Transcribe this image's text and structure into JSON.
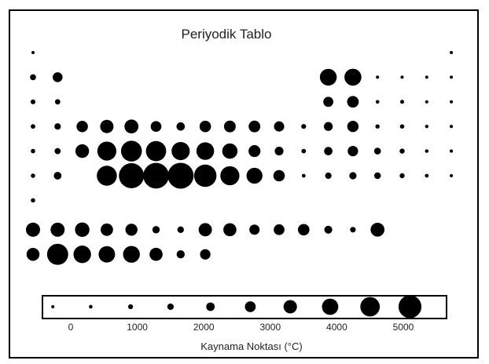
{
  "chart_data": {
    "type": "scatter",
    "title": "Periyodik Tablo",
    "xlabel": "Kaynama Noktası (°C)",
    "size_legend": {
      "ticks": [
        0,
        1000,
        2000,
        3000,
        4000,
        5000
      ],
      "values": [
        -269,
        300,
        900,
        1500,
        2100,
        2700,
        3300,
        3900,
        4500,
        5100
      ]
    },
    "size_scale": {
      "min": -269,
      "max": 5600
    },
    "colors": {
      "marker": "#000000",
      "frame": "#000000"
    },
    "elements": [
      {
        "period": 1,
        "group": 1,
        "bp": -253
      },
      {
        "period": 1,
        "group": 18,
        "bp": -269
      },
      {
        "period": 2,
        "group": 1,
        "bp": 1342
      },
      {
        "period": 2,
        "group": 2,
        "bp": 2470
      },
      {
        "period": 2,
        "group": 13,
        "bp": 4000
      },
      {
        "period": 2,
        "group": 14,
        "bp": 4027
      },
      {
        "period": 2,
        "group": 15,
        "bp": -196
      },
      {
        "period": 2,
        "group": 16,
        "bp": -183
      },
      {
        "period": 2,
        "group": 17,
        "bp": -188
      },
      {
        "period": 2,
        "group": 18,
        "bp": -246
      },
      {
        "period": 3,
        "group": 1,
        "bp": 883
      },
      {
        "period": 3,
        "group": 2,
        "bp": 1090
      },
      {
        "period": 3,
        "group": 13,
        "bp": 2519
      },
      {
        "period": 3,
        "group": 14,
        "bp": 2900
      },
      {
        "period": 3,
        "group": 15,
        "bp": 280
      },
      {
        "period": 3,
        "group": 16,
        "bp": 445
      },
      {
        "period": 3,
        "group": 17,
        "bp": -34
      },
      {
        "period": 3,
        "group": 18,
        "bp": -186
      },
      {
        "period": 4,
        "group": 1,
        "bp": 759
      },
      {
        "period": 4,
        "group": 2,
        "bp": 1484
      },
      {
        "period": 4,
        "group": 3,
        "bp": 2836
      },
      {
        "period": 4,
        "group": 4,
        "bp": 3287
      },
      {
        "period": 4,
        "group": 5,
        "bp": 3407
      },
      {
        "period": 4,
        "group": 6,
        "bp": 2671
      },
      {
        "period": 4,
        "group": 7,
        "bp": 2061
      },
      {
        "period": 4,
        "group": 8,
        "bp": 2861
      },
      {
        "period": 4,
        "group": 9,
        "bp": 2927
      },
      {
        "period": 4,
        "group": 10,
        "bp": 2913
      },
      {
        "period": 4,
        "group": 11,
        "bp": 2562
      },
      {
        "period": 4,
        "group": 12,
        "bp": 907
      },
      {
        "period": 4,
        "group": 13,
        "bp": 2204
      },
      {
        "period": 4,
        "group": 14,
        "bp": 2833
      },
      {
        "period": 4,
        "group": 15,
        "bp": 614
      },
      {
        "period": 4,
        "group": 16,
        "bp": 685
      },
      {
        "period": 4,
        "group": 17,
        "bp": 59
      },
      {
        "period": 4,
        "group": 18,
        "bp": -153
      },
      {
        "period": 5,
        "group": 1,
        "bp": 688
      },
      {
        "period": 5,
        "group": 2,
        "bp": 1382
      },
      {
        "period": 5,
        "group": 3,
        "bp": 3345
      },
      {
        "period": 5,
        "group": 4,
        "bp": 4409
      },
      {
        "period": 5,
        "group": 5,
        "bp": 4744
      },
      {
        "period": 5,
        "group": 6,
        "bp": 4639
      },
      {
        "period": 5,
        "group": 7,
        "bp": 4265
      },
      {
        "period": 5,
        "group": 8,
        "bp": 4150
      },
      {
        "period": 5,
        "group": 9,
        "bp": 3695
      },
      {
        "period": 5,
        "group": 10,
        "bp": 2963
      },
      {
        "period": 5,
        "group": 11,
        "bp": 2162
      },
      {
        "period": 5,
        "group": 12,
        "bp": 767
      },
      {
        "period": 5,
        "group": 13,
        "bp": 2072
      },
      {
        "period": 5,
        "group": 14,
        "bp": 2602
      },
      {
        "period": 5,
        "group": 15,
        "bp": 1587
      },
      {
        "period": 5,
        "group": 16,
        "bp": 988
      },
      {
        "period": 5,
        "group": 17,
        "bp": 184
      },
      {
        "period": 5,
        "group": 18,
        "bp": -108
      },
      {
        "period": 6,
        "group": 1,
        "bp": 671
      },
      {
        "period": 6,
        "group": 2,
        "bp": 1870
      },
      {
        "period": 6,
        "group": 4,
        "bp": 4603
      },
      {
        "period": 6,
        "group": 5,
        "bp": 5458
      },
      {
        "period": 6,
        "group": 6,
        "bp": 5555
      },
      {
        "period": 6,
        "group": 7,
        "bp": 5596
      },
      {
        "period": 6,
        "group": 8,
        "bp": 5012
      },
      {
        "period": 6,
        "group": 9,
        "bp": 4428
      },
      {
        "period": 6,
        "group": 10,
        "bp": 3825
      },
      {
        "period": 6,
        "group": 11,
        "bp": 2856
      },
      {
        "period": 6,
        "group": 12,
        "bp": 357
      },
      {
        "period": 6,
        "group": 13,
        "bp": 1473
      },
      {
        "period": 6,
        "group": 14,
        "bp": 1749
      },
      {
        "period": 6,
        "group": 15,
        "bp": 1564
      },
      {
        "period": 6,
        "group": 16,
        "bp": 962
      },
      {
        "period": 6,
        "group": 17,
        "bp": 350
      },
      {
        "period": 6,
        "group": 18,
        "bp": -62
      },
      {
        "period": 7,
        "group": 1,
        "bp": 677
      },
      {
        "period": 8,
        "group": 1,
        "bp": 3464
      },
      {
        "period": 8,
        "group": 2,
        "bp": 3443
      },
      {
        "period": 8,
        "group": 3,
        "bp": 3520
      },
      {
        "period": 8,
        "group": 4,
        "bp": 3074
      },
      {
        "period": 8,
        "group": 5,
        "bp": 3000
      },
      {
        "period": 8,
        "group": 6,
        "bp": 1794
      },
      {
        "period": 8,
        "group": 7,
        "bp": 1529
      },
      {
        "period": 8,
        "group": 8,
        "bp": 3273
      },
      {
        "period": 8,
        "group": 9,
        "bp": 3230
      },
      {
        "period": 8,
        "group": 10,
        "bp": 2567
      },
      {
        "period": 8,
        "group": 11,
        "bp": 2700
      },
      {
        "period": 8,
        "group": 12,
        "bp": 2868
      },
      {
        "period": 8,
        "group": 13,
        "bp": 1950
      },
      {
        "period": 8,
        "group": 14,
        "bp": 1196
      },
      {
        "period": 8,
        "group": 15,
        "bp": 3402
      },
      {
        "period": 9,
        "group": 1,
        "bp": 3198
      },
      {
        "period": 9,
        "group": 2,
        "bp": 4788
      },
      {
        "period": 9,
        "group": 3,
        "bp": 4131
      },
      {
        "period": 9,
        "group": 4,
        "bp": 3927
      },
      {
        "period": 9,
        "group": 5,
        "bp": 4000
      },
      {
        "period": 9,
        "group": 6,
        "bp": 3228
      },
      {
        "period": 9,
        "group": 7,
        "bp": 2011
      },
      {
        "period": 9,
        "group": 8,
        "bp": 2607
      }
    ]
  }
}
